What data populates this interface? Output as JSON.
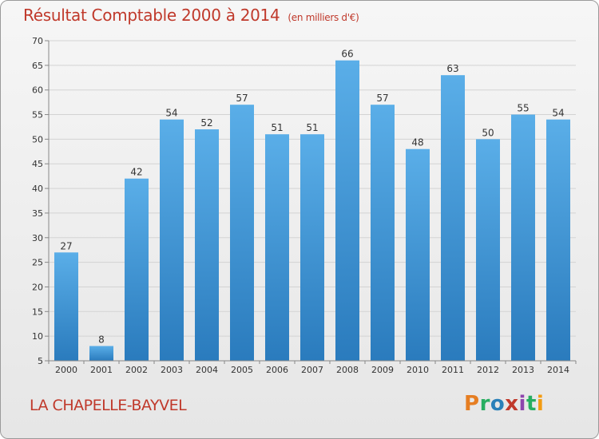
{
  "header": {
    "title": "Résultat Comptable 2000 à 2014",
    "subtitle": "(en milliers d'€)"
  },
  "footer": {
    "place": "LA CHAPELLE-BAYVEL",
    "logo": {
      "text": "Proxiti",
      "colors": [
        "#e67e22",
        "#27ae60",
        "#2980b9",
        "#c0392b",
        "#8e44ad",
        "#27ae60",
        "#f39c12"
      ]
    }
  },
  "colors": {
    "bar_top": "#5aaee8",
    "bar_bottom": "#2a7bbd",
    "grid": "#d3d3d3",
    "axis_text": "#333333"
  },
  "chart_data": {
    "type": "bar",
    "categories": [
      "2000",
      "2001",
      "2002",
      "2003",
      "2004",
      "2005",
      "2006",
      "2007",
      "2008",
      "2009",
      "2010",
      "2011",
      "2012",
      "2013",
      "2014"
    ],
    "values": [
      27,
      8,
      42,
      54,
      52,
      57,
      51,
      51,
      66,
      57,
      48,
      63,
      50,
      55,
      54
    ],
    "ylim": [
      5,
      70
    ],
    "yticks": [
      5,
      10,
      15,
      20,
      25,
      30,
      35,
      40,
      45,
      50,
      55,
      60,
      65,
      70
    ],
    "grid": true
  }
}
